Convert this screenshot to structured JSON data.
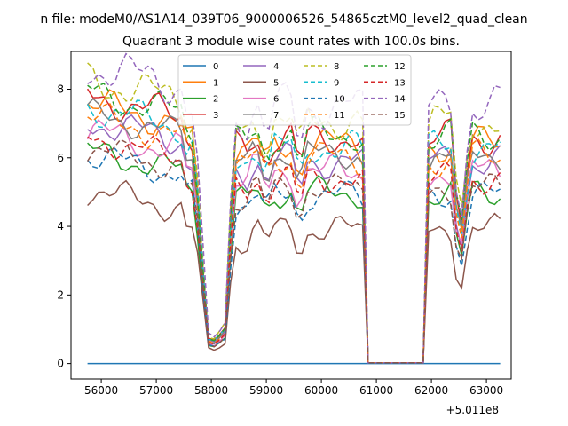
{
  "chart_data": {
    "type": "line",
    "suptitle": "n file: modeM0/AS1A14_039T06_9000006526_54865cztM0_level2_quad_clean",
    "title": "Quadrant 3 module wise count rates with 100.0s bins.",
    "xlabel": "",
    "ylabel": "",
    "x_offset_label": "+5.011e8",
    "xlim": [
      55450,
      63450
    ],
    "ylim": [
      -0.45,
      9.1
    ],
    "xticks": [
      56000,
      57000,
      58000,
      59000,
      60000,
      61000,
      62000,
      63000
    ],
    "xtick_labels": [
      "56000",
      "57000",
      "58000",
      "59000",
      "60000",
      "61000",
      "62000",
      "63000"
    ],
    "yticks": [
      0,
      2,
      4,
      6,
      8
    ],
    "ytick_labels": [
      "0",
      "2",
      "4",
      "6",
      "8"
    ],
    "grid": false,
    "legend_position": "upper-center",
    "legend_columns": 4,
    "segments": [
      {
        "x0": 55750,
        "x1": 60750,
        "kind": "active"
      },
      {
        "x0": 60850,
        "x1": 61850,
        "kind": "gap"
      },
      {
        "x0": 61950,
        "x1": 63250,
        "kind": "active"
      }
    ],
    "series": [
      {
        "name": "0",
        "color": "#1f77b4",
        "dash": "solid",
        "level": 0.0,
        "amp": 0.0
      },
      {
        "name": "1",
        "color": "#ff7f0e",
        "dash": "solid",
        "level": 6.4,
        "amp": 0.35
      },
      {
        "name": "2",
        "color": "#2ca02c",
        "dash": "solid",
        "level": 5.0,
        "amp": 0.3
      },
      {
        "name": "3",
        "color": "#d62728",
        "dash": "solid",
        "level": 6.6,
        "amp": 0.35
      },
      {
        "name": "4",
        "color": "#9467bd",
        "dash": "solid",
        "level": 5.9,
        "amp": 0.35
      },
      {
        "name": "5",
        "color": "#8c564b",
        "dash": "solid",
        "level": 3.9,
        "amp": 0.3
      },
      {
        "name": "6",
        "color": "#e377c2",
        "dash": "solid",
        "level": 5.6,
        "amp": 0.35
      },
      {
        "name": "7",
        "color": "#7f7f7f",
        "dash": "solid",
        "level": 6.1,
        "amp": 0.3
      },
      {
        "name": "8",
        "color": "#bcbd22",
        "dash": "dashed",
        "level": 7.1,
        "amp": 0.4
      },
      {
        "name": "9",
        "color": "#17becf",
        "dash": "dashed",
        "level": 6.3,
        "amp": 0.35
      },
      {
        "name": "10",
        "color": "#1f77b4",
        "dash": "dashed",
        "level": 4.9,
        "amp": 0.3
      },
      {
        "name": "11",
        "color": "#ff7f0e",
        "dash": "dashed",
        "level": 6.0,
        "amp": 0.35
      },
      {
        "name": "12",
        "color": "#2ca02c",
        "dash": "dashed",
        "level": 6.7,
        "amp": 0.35
      },
      {
        "name": "13",
        "color": "#d62728",
        "dash": "dashed",
        "level": 5.4,
        "amp": 0.3
      },
      {
        "name": "14",
        "color": "#9467bd",
        "dash": "dashed",
        "level": 7.5,
        "amp": 0.45
      },
      {
        "name": "15",
        "color": "#8c564b",
        "dash": "dashed",
        "level": 5.1,
        "amp": 0.3
      }
    ]
  }
}
